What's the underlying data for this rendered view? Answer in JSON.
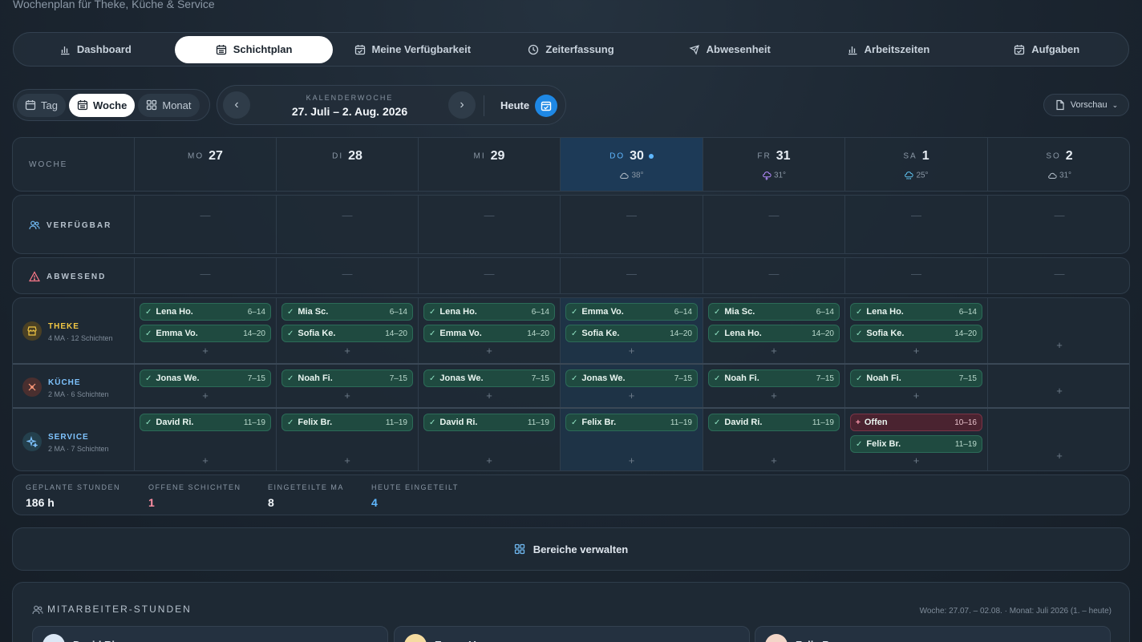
{
  "subtitle": "Wochenplan für Theke, Küche & Service",
  "nav": [
    {
      "label": "Dashboard",
      "icon": "bar-chart-icon",
      "active": false
    },
    {
      "label": "Schichtplan",
      "icon": "calendar-icon",
      "active": true
    },
    {
      "label": "Meine Verfügbarkeit",
      "icon": "calendar-check-icon",
      "active": false
    },
    {
      "label": "Zeiterfassung",
      "icon": "clock-icon",
      "active": false
    },
    {
      "label": "Abwesenheit",
      "icon": "plane-icon",
      "active": false
    },
    {
      "label": "Arbeitszeiten",
      "icon": "bar-chart-icon",
      "active": false
    },
    {
      "label": "Aufgaben",
      "icon": "calendar-check-icon",
      "active": false
    }
  ],
  "view": {
    "tag": "Tag",
    "woche": "Woche",
    "monat": "Monat",
    "active": "woche"
  },
  "week": {
    "label": "KALENDERWOCHE",
    "range": "27. Juli – 2. Aug. 2026",
    "today_label": "Heute"
  },
  "preview_label": "Vorschau",
  "grid": {
    "week_label": "WOCHE",
    "days": [
      {
        "name": "MO",
        "num": "27",
        "weather": "",
        "weather_icon": "",
        "today": false
      },
      {
        "name": "DI",
        "num": "28",
        "weather": "",
        "weather_icon": "",
        "today": false
      },
      {
        "name": "MI",
        "num": "29",
        "weather": "",
        "weather_icon": "",
        "today": false
      },
      {
        "name": "DO",
        "num": "30",
        "weather": "38°",
        "weather_icon": "cloud-icon",
        "today": true
      },
      {
        "name": "FR",
        "num": "31",
        "weather": "31°",
        "weather_icon": "storm-icon",
        "today": false
      },
      {
        "name": "SA",
        "num": "1",
        "weather": "25°",
        "weather_icon": "rain-icon",
        "today": false
      },
      {
        "name": "SO",
        "num": "2",
        "weather": "31°",
        "weather_icon": "cloud-icon",
        "today": false
      }
    ],
    "available_label": "VERFÜGBAR",
    "absent_label": "ABWESEND",
    "empty_mark": "—",
    "add_mark": "+"
  },
  "sections": [
    {
      "name": "THEKE",
      "meta": "4 MA · 12 Schichten",
      "color": "#f2c744",
      "icon": "store-icon",
      "days": [
        [
          {
            "n": "Lena Ho.",
            "t": "6–14"
          },
          {
            "n": "Emma Vo.",
            "t": "14–20"
          }
        ],
        [
          {
            "n": "Mia Sc.",
            "t": "6–14"
          },
          {
            "n": "Sofia Ke.",
            "t": "14–20"
          }
        ],
        [
          {
            "n": "Lena Ho.",
            "t": "6–14"
          },
          {
            "n": "Emma Vo.",
            "t": "14–20"
          }
        ],
        [
          {
            "n": "Emma Vo.",
            "t": "6–14"
          },
          {
            "n": "Sofia Ke.",
            "t": "14–20"
          }
        ],
        [
          {
            "n": "Mia Sc.",
            "t": "6–14"
          },
          {
            "n": "Lena Ho.",
            "t": "14–20"
          }
        ],
        [
          {
            "n": "Lena Ho.",
            "t": "6–14"
          },
          {
            "n": "Sofia Ke.",
            "t": "14–20"
          }
        ],
        []
      ]
    },
    {
      "name": "KÜCHE",
      "meta": "2 MA · 6 Schichten",
      "color": "#7fc4ff",
      "icon": "chef-icon",
      "days": [
        [
          {
            "n": "Jonas We.",
            "t": "7–15"
          }
        ],
        [
          {
            "n": "Noah Fi.",
            "t": "7–15"
          }
        ],
        [
          {
            "n": "Jonas We.",
            "t": "7–15"
          }
        ],
        [
          {
            "n": "Jonas We.",
            "t": "7–15"
          }
        ],
        [
          {
            "n": "Noah Fi.",
            "t": "7–15"
          }
        ],
        [
          {
            "n": "Noah Fi.",
            "t": "7–15"
          }
        ],
        []
      ]
    },
    {
      "name": "SERVICE",
      "meta": "2 MA · 7 Schichten",
      "color": "#7fc4ff",
      "icon": "sparkle-icon",
      "days": [
        [
          {
            "n": "David Ri.",
            "t": "11–19"
          }
        ],
        [
          {
            "n": "Felix Br.",
            "t": "11–19"
          }
        ],
        [
          {
            "n": "David Ri.",
            "t": "11–19"
          }
        ],
        [
          {
            "n": "Felix Br.",
            "t": "11–19"
          }
        ],
        [
          {
            "n": "David Ri.",
            "t": "11–19"
          }
        ],
        [
          {
            "n": "Offen",
            "t": "10–16",
            "open": true
          },
          {
            "n": "Felix Br.",
            "t": "11–19"
          }
        ],
        []
      ]
    }
  ],
  "stats": [
    {
      "label": "GEPLANTE STUNDEN",
      "value": "186 h",
      "color": "#f2f6fa"
    },
    {
      "label": "OFFENE SCHICHTEN",
      "value": "1",
      "color": "#ff8fa3"
    },
    {
      "label": "EINGETEILTE MA",
      "value": "8",
      "color": "#f2f6fa"
    },
    {
      "label": "HEUTE EINGETEILT",
      "value": "4",
      "color": "#5fb7ff"
    }
  ],
  "manage_label": "Bereiche verwalten",
  "hours": {
    "title": "MITARBEITER-STUNDEN",
    "meta": "Woche: 27.07. – 02.08. · Monat: Juli 2026 (1. – heute)",
    "cards": [
      {
        "name": "David Ri.",
        "avatar_color": "#dbe7f5"
      },
      {
        "name": "Emma Vo.",
        "avatar_color": "#f5dba0"
      },
      {
        "name": "Felix Br.",
        "avatar_color": "#f3d6c8"
      }
    ]
  }
}
